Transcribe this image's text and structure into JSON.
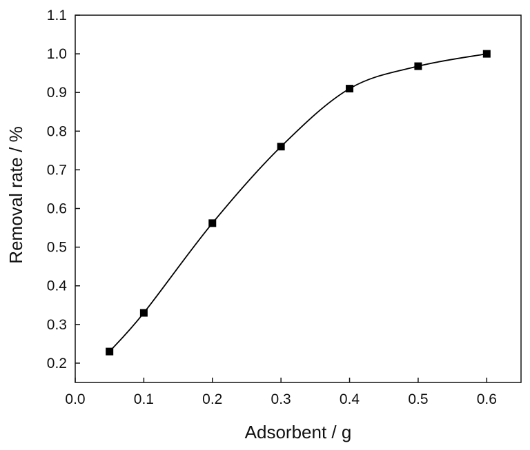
{
  "chart_data": {
    "type": "scatter",
    "title": "",
    "xlabel": "Adsorbent / g",
    "ylabel": "Removal rate / %",
    "xlim": [
      0.0,
      0.65
    ],
    "ylim": [
      0.15,
      1.1
    ],
    "x_ticks": [
      0.0,
      0.1,
      0.2,
      0.3,
      0.4,
      0.5,
      0.6
    ],
    "x_tick_labels": [
      "0.0",
      "0.1",
      "0.2",
      "0.3",
      "0.4",
      "0.5",
      "0.6"
    ],
    "y_ticks": [
      0.2,
      0.3,
      0.4,
      0.5,
      0.6,
      0.7,
      0.8,
      0.9,
      1.0,
      1.1
    ],
    "y_tick_labels": [
      "0.2",
      "0.3",
      "0.4",
      "0.5",
      "0.6",
      "0.7",
      "0.8",
      "0.9",
      "1.0",
      "1.1"
    ],
    "series": [
      {
        "x": [
          0.05,
          0.1,
          0.2,
          0.3,
          0.4,
          0.5,
          0.6
        ],
        "y": [
          0.23,
          0.33,
          0.562,
          0.76,
          0.91,
          0.968,
          1.0
        ],
        "marker": "square",
        "color": "#000000",
        "fit_line": true
      }
    ],
    "grid": false,
    "legend": "none"
  }
}
